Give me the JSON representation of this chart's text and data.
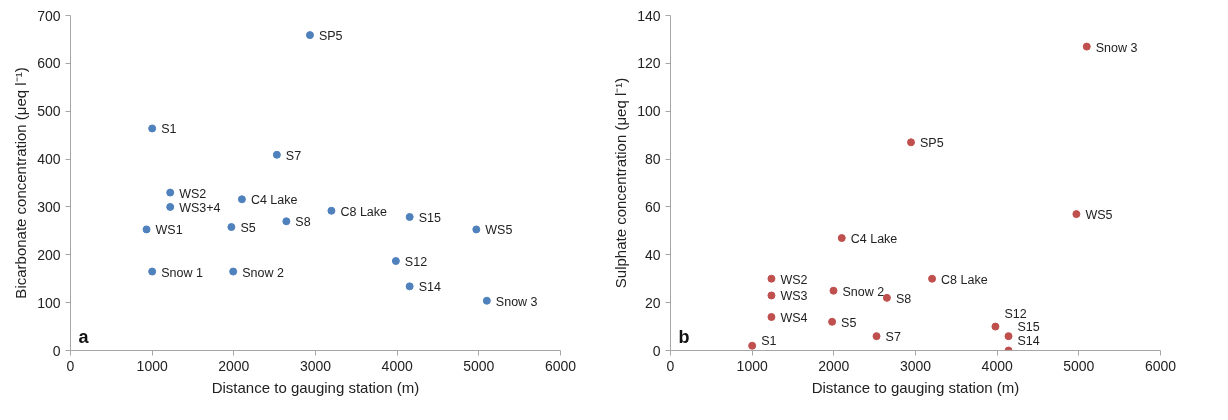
{
  "chart_data": [
    {
      "type": "scatter",
      "xlabel": "Distance to gauging station (m)",
      "ylabel": "Bicarbonate concentration (μeq l⁻¹)",
      "xlim": [
        0,
        6000
      ],
      "xticks": [
        0,
        1000,
        2000,
        3000,
        4000,
        5000,
        6000
      ],
      "ylim": [
        0,
        700
      ],
      "yticks": [
        0,
        100,
        200,
        300,
        400,
        500,
        600,
        700
      ],
      "grid": false,
      "marker": "circle",
      "series": [
        {
          "color": "#4f81bd",
          "x": [
            2932,
            1000,
            2527,
            1221,
            1221,
            2099,
            3195,
            4153,
            931,
            1970,
            2643,
            4969,
            3984,
            1000,
            1992,
            4153,
            5098
          ],
          "values": [
            659,
            464,
            409,
            330,
            300,
            316,
            292,
            279,
            253,
            258,
            270,
            253,
            187,
            165,
            165,
            134,
            104
          ]
        }
      ],
      "annotations": [
        {
          "text": "SP5",
          "x": 2932,
          "y": 659
        },
        {
          "text": "S1",
          "x": 1000,
          "y": 464
        },
        {
          "text": "S7",
          "x": 2527,
          "y": 409
        },
        {
          "text": "WS2",
          "x": 1221,
          "y": 330
        },
        {
          "text": "WS3+4",
          "x": 1221,
          "y": 300
        },
        {
          "text": "C4 Lake",
          "x": 2099,
          "y": 316
        },
        {
          "text": "C8 Lake",
          "x": 3195,
          "y": 292
        },
        {
          "text": "S15",
          "x": 4153,
          "y": 279
        },
        {
          "text": "WS1",
          "x": 931,
          "y": 253
        },
        {
          "text": "S5",
          "x": 1970,
          "y": 258
        },
        {
          "text": "S8",
          "x": 2643,
          "y": 270
        },
        {
          "text": "WS5",
          "x": 4969,
          "y": 253
        },
        {
          "text": "S12",
          "x": 3984,
          "y": 187
        },
        {
          "text": "Snow 1",
          "x": 1000,
          "y": 165
        },
        {
          "text": "Snow 2",
          "x": 1992,
          "y": 165
        },
        {
          "text": "S14",
          "x": 4153,
          "y": 134
        },
        {
          "text": "Snow 3",
          "x": 5098,
          "y": 104
        },
        "a"
      ]
    },
    {
      "type": "scatter",
      "xlabel": "Distance to gauging station (m)",
      "ylabel": "Sulphate concentration (μeq l⁻¹)",
      "xlim": [
        0,
        6000
      ],
      "xticks": [
        0,
        1000,
        2000,
        3000,
        4000,
        5000,
        6000
      ],
      "ylim": [
        0,
        140
      ],
      "yticks": [
        0,
        20,
        40,
        60,
        80,
        100,
        120,
        140
      ],
      "grid": false,
      "marker": "circle",
      "series": [
        {
          "color": "#c0504d",
          "x": [
            5097,
            2945,
            4970,
            2097,
            1236,
            3203,
            1236,
            1996,
            2650,
            1236,
            1979,
            3979,
            2523,
            4139,
            1000,
            4139
          ],
          "values": [
            127,
            87,
            57,
            47,
            30,
            30,
            23,
            25,
            22,
            14,
            12,
            10,
            6,
            6,
            2,
            0
          ]
        }
      ],
      "annotations": [
        {
          "text": "Snow 3",
          "x": 5097,
          "y": 127
        },
        {
          "text": "SP5",
          "x": 2945,
          "y": 87
        },
        {
          "text": "WS5",
          "x": 4970,
          "y": 57
        },
        {
          "text": "C4 Lake",
          "x": 2097,
          "y": 47
        },
        {
          "text": "WS2",
          "x": 1236,
          "y": 30
        },
        {
          "text": "C8 Lake",
          "x": 3203,
          "y": 30
        },
        {
          "text": "WS3",
          "x": 1236,
          "y": 23
        },
        {
          "text": "Snow 2",
          "x": 1996,
          "y": 25
        },
        {
          "text": "S8",
          "x": 2650,
          "y": 22
        },
        {
          "text": "WS4",
          "x": 1236,
          "y": 14
        },
        {
          "text": "S5",
          "x": 1979,
          "y": 12
        },
        {
          "text": "S12",
          "x": 3979,
          "y": 10
        },
        {
          "text": "S7",
          "x": 2523,
          "y": 6
        },
        {
          "text": "S15",
          "x": 4139,
          "y": 6
        },
        {
          "text": "S1",
          "x": 1000,
          "y": 2
        },
        {
          "text": "S14",
          "x": 4139,
          "y": 0
        },
        "b"
      ]
    }
  ]
}
